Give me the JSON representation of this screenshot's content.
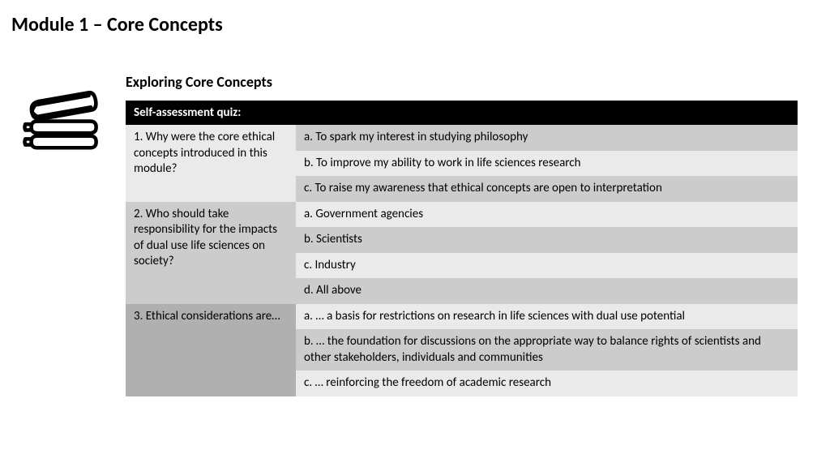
{
  "page": {
    "title": "Module 1 – Core Concepts",
    "title_fontsize": 24,
    "subtitle": "Exploring Core Concepts",
    "subtitle_fontsize": 18
  },
  "colors": {
    "background": "#ffffff",
    "text": "#000000",
    "header_bg": "#000000",
    "header_text": "#ffffff",
    "shade_light": "#eaeaea",
    "shade_med": "#cccccc",
    "shade_dark": "#b0b0b0",
    "icon_stroke": "#000000"
  },
  "quiz": {
    "header": "Self-assessment quiz:",
    "questions": [
      {
        "q_shade": "shade_light",
        "text": "1. Why were the core ethical concepts introduced in this module?",
        "options": [
          {
            "shade": "shade_med",
            "text": "a. To spark my interest in studying philosophy"
          },
          {
            "shade": "shade_light",
            "text": "b. To improve my ability to work in life sciences research"
          },
          {
            "shade": "shade_med",
            "text": "c. To raise my awareness that ethical concepts are open to interpretation"
          }
        ]
      },
      {
        "q_shade": "shade_med",
        "text": "2. Who should take responsibility for the impacts of dual use life sciences on society?",
        "options": [
          {
            "shade": "shade_light",
            "text": "a. Government agencies"
          },
          {
            "shade": "shade_med",
            "text": "b. Scientists"
          },
          {
            "shade": "shade_light",
            "text": "c. Industry"
          },
          {
            "shade": "shade_med",
            "text": "d. All above"
          }
        ]
      },
      {
        "q_shade": "shade_dark",
        "text": "3. Ethical considerations are…",
        "options": [
          {
            "shade": "shade_light",
            "text": "a. … a basis for restrictions on research in life sciences with dual use potential"
          },
          {
            "shade": "shade_med",
            "text": "b. … the foundation for discussions on the appropriate way to balance rights of scientists and other stakeholders, individuals and communities"
          },
          {
            "shade": "shade_light",
            "text": "c. … reinforcing the freedom of academic research"
          }
        ]
      }
    ]
  }
}
